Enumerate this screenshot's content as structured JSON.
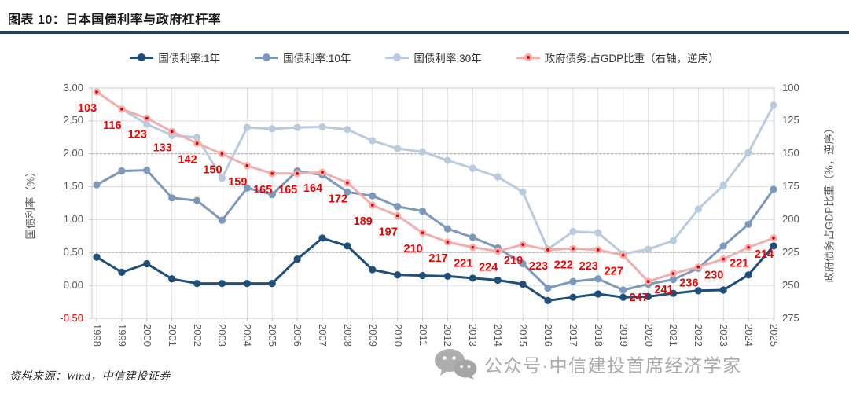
{
  "header": {
    "title": "图表 10：日本国债利率与政府杠杆率"
  },
  "legend": {
    "items": [
      {
        "label": "国债利率:1年",
        "color": "#1f4e79",
        "marker": "line-dot"
      },
      {
        "label": "国债利率:10年",
        "color": "#7c99bb",
        "marker": "line-dot"
      },
      {
        "label": "国债利率:30年",
        "color": "#b9cbdf",
        "marker": "line-dot"
      },
      {
        "label": "政府债务:占GDP比重（右轴，逆序）",
        "color": "#f2aeac",
        "marker": "line-reddot",
        "center_color": "#e60000"
      }
    ]
  },
  "chart_data": {
    "type": "line",
    "categories": [
      "1998",
      "1999",
      "2000",
      "2001",
      "2002",
      "2003",
      "2004",
      "2005",
      "2006",
      "2007",
      "2008",
      "2009",
      "2010",
      "2011",
      "2012",
      "2013",
      "2014",
      "2015",
      "2016",
      "2017",
      "2018",
      "2019",
      "2020",
      "2021",
      "2022",
      "2023",
      "2024",
      "2025"
    ],
    "series": [
      {
        "name": "国债利率:1年",
        "axis": "left",
        "color": "#1f4e79",
        "values": [
          0.43,
          0.2,
          0.33,
          0.1,
          0.03,
          0.03,
          0.03,
          0.03,
          0.4,
          0.72,
          0.6,
          0.24,
          0.16,
          0.15,
          0.14,
          0.11,
          0.08,
          0.02,
          -0.23,
          -0.18,
          -0.13,
          -0.18,
          -0.17,
          -0.12,
          -0.08,
          -0.07,
          0.16,
          0.6
        ]
      },
      {
        "name": "国债利率:10年",
        "axis": "left",
        "color": "#7c99bb",
        "values": [
          1.53,
          1.74,
          1.75,
          1.33,
          1.29,
          0.99,
          1.48,
          1.38,
          1.74,
          1.68,
          1.42,
          1.36,
          1.2,
          1.13,
          0.86,
          0.73,
          0.57,
          0.33,
          -0.04,
          0.06,
          0.1,
          -0.07,
          0.02,
          0.09,
          0.26,
          0.6,
          0.93,
          1.46
        ]
      },
      {
        "name": "国债利率:30年",
        "axis": "left",
        "color": "#b9cbdf",
        "values": [
          null,
          2.68,
          2.45,
          2.28,
          2.25,
          1.63,
          2.4,
          2.38,
          2.4,
          2.41,
          2.37,
          2.2,
          2.08,
          2.03,
          1.9,
          1.78,
          1.65,
          1.42,
          0.55,
          0.82,
          0.8,
          0.48,
          0.55,
          0.68,
          1.16,
          1.52,
          2.02,
          2.74
        ]
      },
      {
        "name": "政府债务:占GDP比重（右轴，逆序）",
        "axis": "right",
        "color": "#f2aeac",
        "marker_center": "#e60000",
        "data_labels": true,
        "label_color": "#f00000",
        "values": [
          103,
          116,
          123,
          133,
          142,
          150,
          159,
          165,
          165,
          164,
          172,
          189,
          197,
          210,
          217,
          221,
          224,
          219,
          223,
          222,
          223,
          227,
          247,
          241,
          236,
          230,
          221,
          214
        ]
      }
    ],
    "left_axis": {
      "title": "国债利率（%）",
      "max": 3.0,
      "min": -0.5,
      "step": 0.5,
      "ticks": [
        "3.00",
        "2.50",
        "2.00",
        "1.50",
        "1.00",
        "0.50",
        "0.00",
        "-0.50"
      ]
    },
    "right_axis": {
      "title": "政府债务占GDP比重（%，逆序）",
      "min": 100,
      "max": 275,
      "step": 25,
      "inverted": true,
      "ticks": [
        "100",
        "125",
        "150",
        "175",
        "200",
        "225",
        "250",
        "275"
      ]
    },
    "grid": true,
    "legend_position": "top"
  },
  "source": {
    "text": "资料来源：Wind，中信建投证券"
  },
  "watermark": {
    "icon": "wechat-icon",
    "text": "公众号·中信建投首席经济学家"
  }
}
